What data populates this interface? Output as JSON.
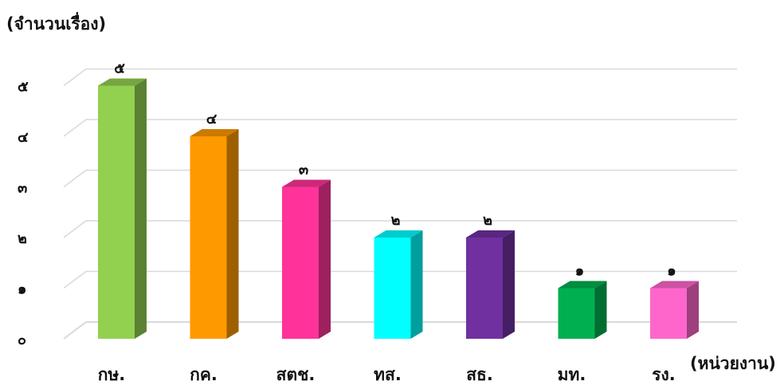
{
  "chart_data": {
    "type": "bar",
    "title": "",
    "ylabel": "(จำนวนเรื่อง)",
    "xlabel": "(หน่วยงาน)",
    "ylim": [
      0,
      5
    ],
    "yticks": [
      "๐",
      "๑",
      "๒",
      "๓",
      "๔",
      "๕"
    ],
    "categories": [
      "กษ.",
      "กค.",
      "สตช.",
      "ทส.",
      "สธ.",
      "มท.",
      "รง."
    ],
    "values": [
      5,
      4,
      3,
      2,
      2,
      1,
      1
    ],
    "value_labels": [
      "๕",
      "๔",
      "๓",
      "๒",
      "๒",
      "๑",
      "๑"
    ],
    "colors": [
      "#92d050",
      "#ff9900",
      "#ff3399",
      "#00ffff",
      "#7030a0",
      "#00b050",
      "#ff66cc"
    ],
    "grid": true,
    "style": "3d-column"
  }
}
